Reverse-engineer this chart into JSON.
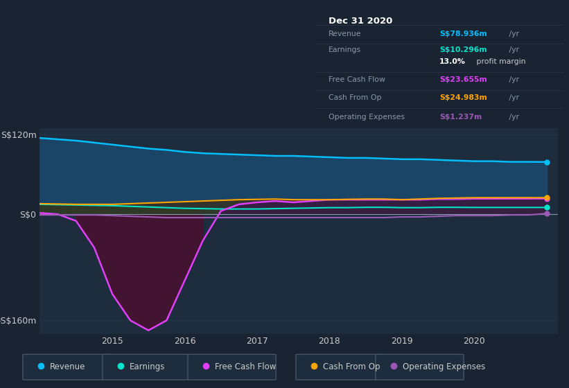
{
  "background_color": "#1a2332",
  "plot_bg_color": "#1e2d3d",
  "title_box_date": "Dec 31 2020",
  "years": [
    2014.0,
    2014.25,
    2014.5,
    2014.75,
    2015.0,
    2015.25,
    2015.5,
    2015.75,
    2016.0,
    2016.25,
    2016.5,
    2016.75,
    2017.0,
    2017.25,
    2017.5,
    2017.75,
    2018.0,
    2018.25,
    2018.5,
    2018.75,
    2019.0,
    2019.25,
    2019.5,
    2019.75,
    2020.0,
    2020.25,
    2020.5,
    2020.75,
    2021.0
  ],
  "revenue": [
    115,
    113,
    111,
    108,
    105,
    102,
    99,
    97,
    94,
    92,
    91,
    90,
    89,
    88,
    88,
    87,
    86,
    85,
    85,
    84,
    83,
    83,
    82,
    81,
    80,
    80,
    79,
    79,
    78.9
  ],
  "earnings": [
    15,
    14.5,
    14,
    13.5,
    13,
    12,
    11,
    10,
    9,
    8.5,
    8,
    8,
    8,
    8.5,
    9,
    9.5,
    10,
    10,
    10.5,
    10.5,
    10,
    10,
    10.5,
    10.5,
    10.3,
    10.3,
    10.3,
    10.3,
    10.3
  ],
  "free_cash_flow": [
    2,
    0,
    -10,
    -50,
    -120,
    -160,
    -175,
    -160,
    -100,
    -40,
    5,
    15,
    18,
    20,
    18,
    20,
    22,
    22,
    22,
    22,
    22,
    22,
    23,
    23,
    23.5,
    23.5,
    23.6,
    23.6,
    23.7
  ],
  "cash_from_op": [
    16,
    15.5,
    15,
    15,
    15,
    16,
    17,
    18,
    19,
    20,
    21,
    22,
    22.5,
    23,
    22,
    22,
    22,
    22.5,
    23,
    23,
    22,
    23,
    24,
    24.5,
    25,
    25,
    25,
    25,
    25
  ],
  "operating_expenses": [
    -1,
    -1,
    -1,
    -1,
    -2,
    -3,
    -4,
    -5,
    -5,
    -5,
    -5,
    -5,
    -5,
    -5,
    -5,
    -5,
    -5,
    -5,
    -5,
    -5,
    -4,
    -4,
    -3,
    -2,
    -2,
    -2,
    -1,
    -1,
    1.2
  ],
  "colors": {
    "revenue": "#00bfff",
    "earnings": "#00e5cc",
    "free_cash_flow": "#e040fb",
    "cash_from_op": "#ffa500",
    "operating_expenses": "#9b59b6"
  },
  "fill_colors": {
    "revenue": "#1a4a6e",
    "earnings": "#1a5a50",
    "free_cash_flow_neg": "#4a1030",
    "free_cash_flow_pos": "#3a1050",
    "cash_from_op": "#3d2a10"
  },
  "ylim": [
    -180,
    130
  ],
  "yticks": [
    -160,
    0,
    120
  ],
  "ytick_labels": [
    "-S$160m",
    "S$0",
    "S$120m"
  ],
  "xticks": [
    2015,
    2016,
    2017,
    2018,
    2019,
    2020
  ],
  "legend": [
    {
      "label": "Revenue",
      "color": "#00bfff"
    },
    {
      "label": "Earnings",
      "color": "#00e5cc"
    },
    {
      "label": "Free Cash Flow",
      "color": "#e040fb"
    },
    {
      "label": "Cash From Op",
      "color": "#ffa500"
    },
    {
      "label": "Operating Expenses",
      "color": "#9b59b6"
    }
  ],
  "info_rows": [
    {
      "label": "Revenue",
      "value": "S$78.936m",
      "value_color": "#00bfff",
      "unit": " /yr",
      "extra": ""
    },
    {
      "label": "Earnings",
      "value": "S$10.296m",
      "value_color": "#00e5cc",
      "unit": " /yr",
      "extra": ""
    },
    {
      "label": "",
      "value": "13.0%",
      "value_color": "#ffffff",
      "unit": "",
      "extra": " profit margin"
    },
    {
      "label": "Free Cash Flow",
      "value": "S$23.655m",
      "value_color": "#e040fb",
      "unit": " /yr",
      "extra": ""
    },
    {
      "label": "Cash From Op",
      "value": "S$24.983m",
      "value_color": "#ffa500",
      "unit": " /yr",
      "extra": ""
    },
    {
      "label": "Operating Expenses",
      "value": "S$1.237m",
      "value_color": "#9b59b6",
      "unit": " /yr",
      "extra": ""
    }
  ]
}
